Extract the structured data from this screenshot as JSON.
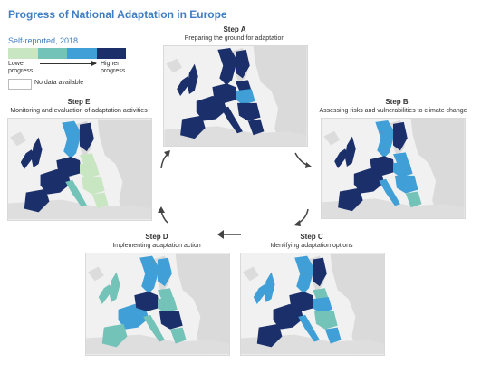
{
  "title": "Progress of National Adaptation in Europe",
  "legend": {
    "title": "Self-reported, 2018",
    "colors": [
      "#c9e6c2",
      "#74c3b8",
      "#3f9fd6",
      "#1b2f6a"
    ],
    "low_label_1": "Lower",
    "low_label_2": "progress",
    "high_label_1": "Higher",
    "high_label_2": "progress",
    "no_data": "No data available"
  },
  "steps": {
    "a": {
      "name": "Step A",
      "desc": "Preparing the ground for adaptation"
    },
    "b": {
      "name": "Step B",
      "desc": "Assessing risks and vulnerabilities to climate change"
    },
    "c": {
      "name": "Step C",
      "desc": "Identifying adaptation options"
    },
    "d": {
      "name": "Step D",
      "desc": "Implementing adaptation action"
    },
    "e": {
      "name": "Step E",
      "desc": "Monitoring and evaluation of adaptation activities"
    }
  },
  "map_colors": {
    "sea": "#f1f1f1",
    "non_eu_land": "#d8d8d8",
    "level_1": "#c9e6c2",
    "level_2": "#74c3b8",
    "level_3": "#3f9fd6",
    "level_4": "#1b2f6a"
  }
}
